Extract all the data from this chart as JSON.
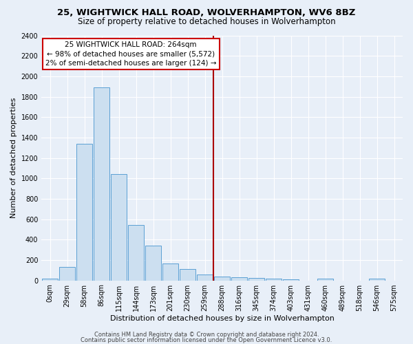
{
  "title1": "25, WIGHTWICK HALL ROAD, WOLVERHAMPTON, WV6 8BZ",
  "title2": "Size of property relative to detached houses in Wolverhampton",
  "xlabel": "Distribution of detached houses by size in Wolverhampton",
  "ylabel": "Number of detached properties",
  "bar_labels": [
    "0sqm",
    "29sqm",
    "58sqm",
    "86sqm",
    "115sqm",
    "144sqm",
    "173sqm",
    "201sqm",
    "230sqm",
    "259sqm",
    "288sqm",
    "316sqm",
    "345sqm",
    "374sqm",
    "403sqm",
    "431sqm",
    "460sqm",
    "489sqm",
    "518sqm",
    "546sqm",
    "575sqm"
  ],
  "bar_values": [
    20,
    130,
    1340,
    1890,
    1040,
    540,
    340,
    165,
    110,
    55,
    35,
    30,
    22,
    15,
    10,
    0,
    20,
    0,
    0,
    20,
    0
  ],
  "bar_color": "#ccdff0",
  "bar_edge_color": "#5a9fd4",
  "background_color": "#e8eff8",
  "grid_color": "#ffffff",
  "vline_x": 9.5,
  "vline_color": "#aa0000",
  "annotation_title": "25 WIGHTWICK HALL ROAD: 264sqm",
  "annotation_line1": "← 98% of detached houses are smaller (5,572)",
  "annotation_line2": "2% of semi-detached houses are larger (124) →",
  "annotation_box_color": "#ffffff",
  "annotation_box_edge": "#cc0000",
  "ylim": [
    0,
    2400
  ],
  "yticks": [
    0,
    200,
    400,
    600,
    800,
    1000,
    1200,
    1400,
    1600,
    1800,
    2000,
    2200,
    2400
  ],
  "footer1": "Contains HM Land Registry data © Crown copyright and database right 2024.",
  "footer2": "Contains public sector information licensed under the Open Government Licence v3.0.",
  "title1_fontsize": 9.5,
  "title2_fontsize": 8.5,
  "xlabel_fontsize": 8,
  "ylabel_fontsize": 8,
  "tick_fontsize": 7,
  "annotation_fontsize": 7.5,
  "footer_fontsize": 6
}
